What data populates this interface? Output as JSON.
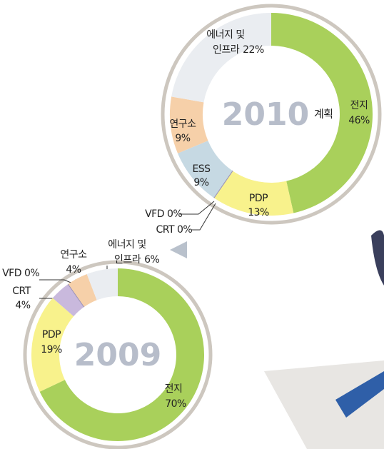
{
  "chart_data": [
    {
      "type": "donut",
      "title": "2010",
      "subtitle": "계획",
      "categories": [
        "전지",
        "PDP",
        "VFD",
        "CRT",
        "ESS",
        "연구소",
        "에너지 및 인프라"
      ],
      "values": [
        46,
        13,
        0,
        0,
        9,
        9,
        22
      ],
      "value_labels": [
        "46%",
        "13%",
        "0%",
        "0%",
        "9%",
        "9%",
        "22%"
      ],
      "colors": [
        "#a9d05b",
        "#f8f28c",
        "#9b93b8",
        "#9b93b8",
        "#c6d9e3",
        "#f6d0a9",
        "#eaedf1"
      ]
    },
    {
      "type": "donut",
      "title": "2009",
      "categories": [
        "전지",
        "PDP",
        "CRT",
        "VFD",
        "연구소",
        "에너지 및 인프라"
      ],
      "values": [
        70,
        19,
        4,
        0,
        4,
        6
      ],
      "value_labels": [
        "70%",
        "19%",
        "4%",
        "0%",
        "4%",
        "6%"
      ],
      "colors": [
        "#a9d05b",
        "#f8f28c",
        "#c9b9dd",
        "#9b93b8",
        "#f6d0a9",
        "#eaedf1"
      ]
    }
  ]
}
